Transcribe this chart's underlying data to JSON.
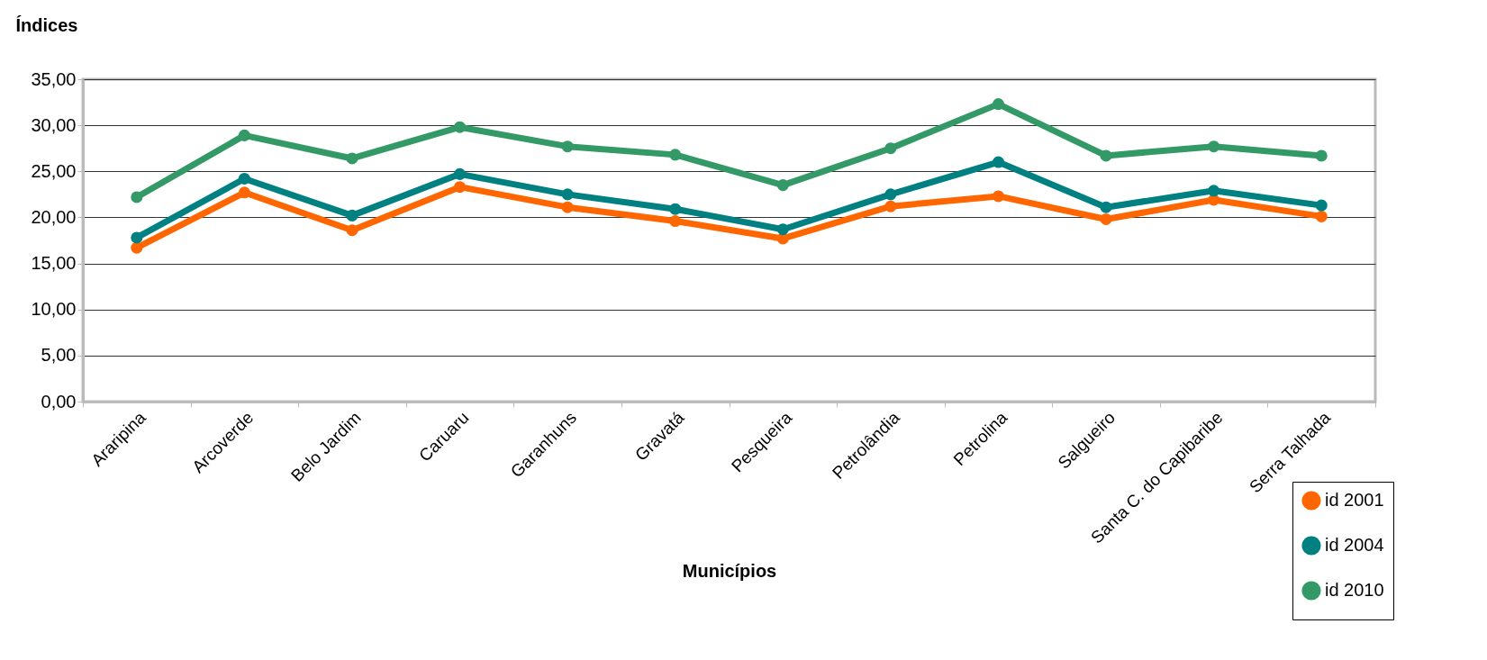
{
  "chart_data": {
    "type": "line",
    "xlabel": "Municípios",
    "ylabel": "Índices",
    "categories": [
      "Araripina",
      "Arcoverde",
      "Belo Jardim",
      "Caruaru",
      "Garanhuns",
      "Gravatá",
      "Pesqueira",
      "Petrolândia",
      "Petrolina",
      "Salgueiro",
      "Santa C. do Capibaribe",
      "Serra Talhada"
    ],
    "series": [
      {
        "name": "id 2001",
        "color": "#ff6600",
        "values": [
          16.7,
          22.7,
          18.6,
          23.3,
          21.1,
          19.6,
          17.7,
          21.2,
          22.3,
          19.8,
          21.9,
          20.1
        ]
      },
      {
        "name": "id 2004",
        "color": "#008080",
        "values": [
          17.8,
          24.2,
          20.2,
          24.7,
          22.5,
          20.9,
          18.7,
          22.5,
          26.0,
          21.1,
          22.9,
          21.3
        ]
      },
      {
        "name": "id 2010",
        "color": "#339966",
        "values": [
          22.2,
          28.9,
          26.4,
          29.8,
          27.7,
          26.8,
          23.5,
          27.5,
          32.3,
          26.7,
          27.7,
          26.7
        ]
      }
    ],
    "ylim": [
      0,
      35
    ],
    "yticks": [
      {
        "value": 0,
        "label": "0,00"
      },
      {
        "value": 5,
        "label": "5,00"
      },
      {
        "value": 10,
        "label": "10,00"
      },
      {
        "value": 15,
        "label": "15,00"
      },
      {
        "value": 20,
        "label": "20,00"
      },
      {
        "value": 25,
        "label": "25,00"
      },
      {
        "value": 30,
        "label": "30,00"
      },
      {
        "value": 35,
        "label": "35,00"
      }
    ],
    "grid": "y",
    "legend": "bottom right",
    "marker": "circle",
    "line_style": "solid"
  }
}
